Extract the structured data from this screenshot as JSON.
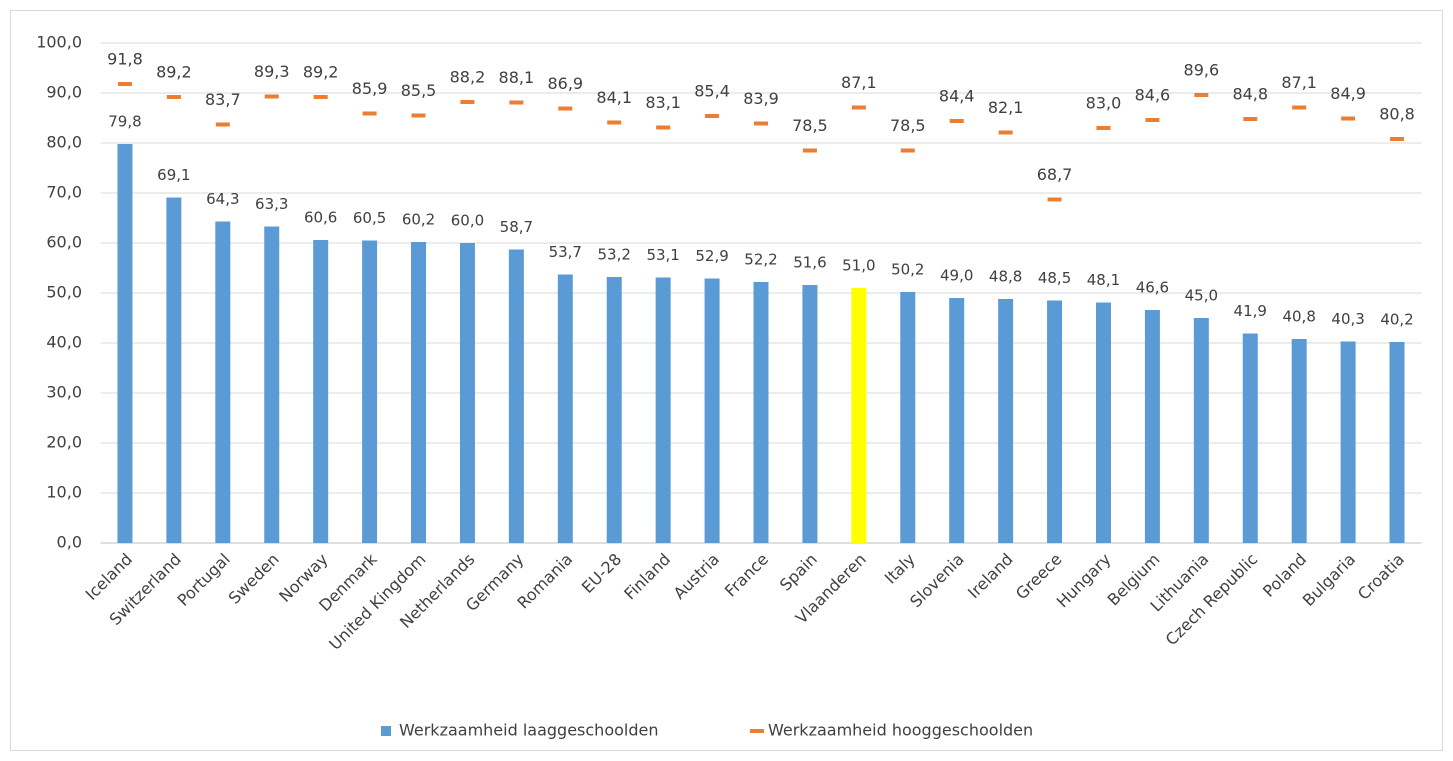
{
  "chart_data": {
    "type": "bar",
    "categories": [
      "Iceland",
      "Switzerland",
      "Portugal",
      "Sweden",
      "Norway",
      "Denmark",
      "United Kingdom",
      "Netherlands",
      "Germany",
      "Romania",
      "EU-28",
      "Finland",
      "Austria",
      "France",
      "Spain",
      "Vlaanderen",
      "Italy",
      "Slovenia",
      "Ireland",
      "Greece",
      "Hungary",
      "Belgium",
      "Lithuania",
      "Czech Republic",
      "Poland",
      "Bulgaria",
      "Croatia"
    ],
    "series": [
      {
        "name": "Werkzaamheid laaggeschoolden",
        "style": "bar",
        "color": "#5b9bd5",
        "colors": [
          "#5b9bd5",
          "#5b9bd5",
          "#5b9bd5",
          "#5b9bd5",
          "#5b9bd5",
          "#5b9bd5",
          "#5b9bd5",
          "#5b9bd5",
          "#5b9bd5",
          "#5b9bd5",
          "#5b9bd5",
          "#5b9bd5",
          "#5b9bd5",
          "#5b9bd5",
          "#5b9bd5",
          "#ffff00",
          "#5b9bd5",
          "#5b9bd5",
          "#5b9bd5",
          "#5b9bd5",
          "#5b9bd5",
          "#5b9bd5",
          "#5b9bd5",
          "#5b9bd5",
          "#5b9bd5",
          "#5b9bd5",
          "#5b9bd5"
        ],
        "values": [
          79.8,
          69.1,
          64.3,
          63.3,
          60.6,
          60.5,
          60.2,
          60.0,
          58.7,
          53.7,
          53.2,
          53.1,
          52.9,
          52.2,
          51.6,
          51.0,
          50.2,
          49.0,
          48.8,
          48.5,
          48.1,
          46.6,
          45.0,
          41.9,
          40.8,
          40.3,
          40.2
        ],
        "value_labels": [
          "79,8",
          "69,1",
          "64,3",
          "63,3",
          "60,6",
          "60,5",
          "60,2",
          "60,0",
          "58,7",
          "53,7",
          "53,2",
          "53,1",
          "52,9",
          "52,2",
          "51,6",
          "51,0",
          "50,2",
          "49,0",
          "48,8",
          "48,5",
          "48,1",
          "46,6",
          "45,0",
          "41,9",
          "40,8",
          "40,3",
          "40,2"
        ]
      },
      {
        "name": "Werkzaamheid hooggeschoolden",
        "style": "dash",
        "color": "#ed7d31",
        "values": [
          91.8,
          89.2,
          83.7,
          89.3,
          89.2,
          85.9,
          85.5,
          88.2,
          88.1,
          86.9,
          84.1,
          83.1,
          85.4,
          83.9,
          78.5,
          87.1,
          78.5,
          84.4,
          82.1,
          68.7,
          83.0,
          84.6,
          89.6,
          84.8,
          87.1,
          84.9,
          80.8
        ],
        "value_labels": [
          "91,8",
          "89,2",
          "83,7",
          "89,3",
          "89,2",
          "85,9",
          "85,5",
          "88,2",
          "88,1",
          "86,9",
          "84,1",
          "83,1",
          "85,4",
          "83,9",
          "78,5",
          "87,1",
          "78,5",
          "84,4",
          "82,1",
          "68,7",
          "83,0",
          "84,6",
          "89,6",
          "84,8",
          "87,1",
          "84,9",
          "80,8"
        ]
      }
    ],
    "ylim": [
      0,
      100
    ],
    "yticks": [
      {
        "value": 0,
        "label": "0,0"
      },
      {
        "value": 10,
        "label": "10,0"
      },
      {
        "value": 20,
        "label": "20,0"
      },
      {
        "value": 30,
        "label": "30,0"
      },
      {
        "value": 40,
        "label": "40,0"
      },
      {
        "value": 50,
        "label": "50,0"
      },
      {
        "value": 60,
        "label": "60,0"
      },
      {
        "value": 70,
        "label": "70,0"
      },
      {
        "value": 80,
        "label": "80,0"
      },
      {
        "value": 90,
        "label": "90,0"
      },
      {
        "value": 100,
        "label": "100,0"
      }
    ],
    "grid": true,
    "legend": "bottom"
  }
}
